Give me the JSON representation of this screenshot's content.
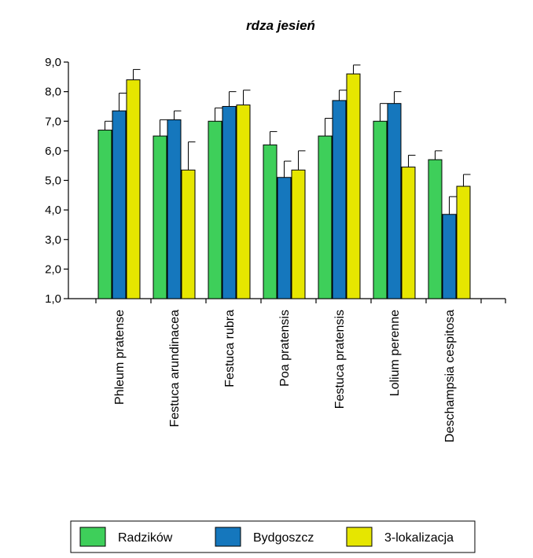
{
  "chart_data": {
    "type": "bar",
    "title": "rdza jesień",
    "xlabel": "",
    "ylabel": "",
    "ylim": [
      1,
      9
    ],
    "yticks": [
      "1,0",
      "2,0",
      "3,0",
      "4,0",
      "5,0",
      "6,0",
      "7,0",
      "8,0",
      "9,0"
    ],
    "categories": [
      "Phleum pratense",
      "Festuca arundinacea",
      "Festuca rubra",
      "Poa pratensis",
      "Festuca pratensis",
      "Lolium perenne",
      "Deschampsia cespitosa"
    ],
    "series": [
      {
        "name": "Radzików",
        "color": "#3ecf5a",
        "values": [
          6.7,
          6.5,
          7.0,
          6.2,
          6.5,
          7.0,
          5.7
        ],
        "errors": [
          0.3,
          0.55,
          0.45,
          0.45,
          0.6,
          0.6,
          0.3
        ]
      },
      {
        "name": "Bydgoszcz",
        "color": "#1577bd",
        "values": [
          7.35,
          7.05,
          7.5,
          5.1,
          7.7,
          7.6,
          3.85
        ],
        "errors": [
          0.6,
          0.3,
          0.5,
          0.55,
          0.35,
          0.4,
          0.6
        ]
      },
      {
        "name": "3-lokalizacja",
        "color": "#e6e600",
        "values": [
          8.4,
          5.35,
          7.55,
          5.35,
          8.6,
          5.45,
          4.8
        ],
        "errors": [
          0.35,
          0.95,
          0.5,
          0.65,
          0.3,
          0.4,
          0.4
        ]
      }
    ],
    "legend_position": "bottom",
    "grid": false
  }
}
